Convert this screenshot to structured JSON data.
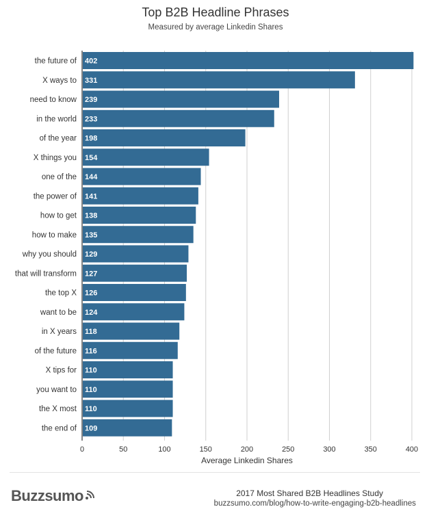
{
  "chart_data": {
    "type": "bar",
    "orientation": "horizontal",
    "title": "Top B2B Headline Phrases",
    "subtitle": "Measured by average Linkedin Shares",
    "xlabel": "Average Linkedin Shares",
    "ylabel": "",
    "xlim": [
      0,
      400
    ],
    "xticks": [
      0,
      50,
      100,
      150,
      200,
      250,
      300,
      350,
      400
    ],
    "grid": true,
    "bar_color": "#336b94",
    "categories": [
      "the future of",
      "X ways to",
      "need to know",
      "in the world",
      "of the year",
      "X things you",
      "one of the",
      "the power of",
      "how to get",
      "how to make",
      "why you should",
      "that will transform",
      "the top X",
      "want to be",
      "in X years",
      "of the future",
      "X tips for",
      "you want to",
      "the X most",
      "the end of"
    ],
    "values": [
      402,
      331,
      239,
      233,
      198,
      154,
      144,
      141,
      138,
      135,
      129,
      127,
      126,
      124,
      118,
      116,
      110,
      110,
      110,
      109
    ]
  },
  "footer": {
    "brand": "Buzzsumo",
    "study": "2017 Most Shared B2B Headlines Study",
    "url": "buzzsumo.com/blog/how-to-write-engaging-b2b-headlines"
  }
}
